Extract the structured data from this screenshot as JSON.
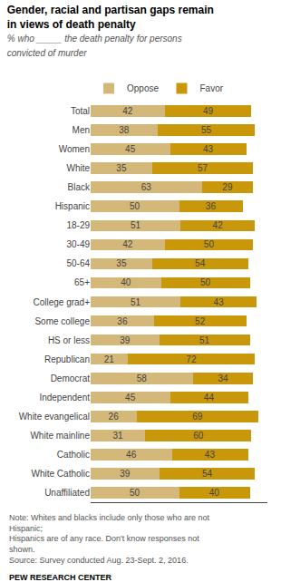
{
  "chart_data": {
    "type": "bar",
    "orientation": "horizontal",
    "stacked": true,
    "title": "Gender, racial and partisan gaps remain\nin views of death penalty",
    "subtitle": "% who _____ the death penalty for persons convicted of murder",
    "categories": [
      "Total",
      "Men",
      "Women",
      "White",
      "Black",
      "Hispanic",
      "18-29",
      "30-49",
      "50-64",
      "65+",
      "College grad+",
      "Some college",
      "HS or less",
      "Republican",
      "Democrat",
      "Independent",
      "White evangelical",
      "White mainline",
      "Catholic",
      "White Catholic",
      "Unaffiliated"
    ],
    "series": [
      {
        "name": "Oppose",
        "color": "#d4b87a",
        "values": [
          42,
          38,
          45,
          35,
          63,
          50,
          51,
          42,
          35,
          40,
          51,
          36,
          39,
          21,
          58,
          45,
          26,
          31,
          46,
          39,
          50
        ]
      },
      {
        "name": "Favor",
        "color": "#c8980a",
        "values": [
          49,
          55,
          43,
          57,
          29,
          36,
          42,
          50,
          54,
          50,
          43,
          52,
          51,
          72,
          34,
          44,
          69,
          60,
          43,
          54,
          40
        ]
      }
    ],
    "xlim": [
      0,
      100
    ],
    "data_labels": true,
    "tick_labels": "y",
    "grid": false,
    "legend": "top",
    "annotations": [
      "Note: Whites and blacks include only those who are not Hispanic;\nHispanics are of any race. Don't know responses not shown.\nSource: Survey conducted Aug. 23-Sept. 2, 2016.",
      "PEW RESEARCH CENTER"
    ]
  }
}
